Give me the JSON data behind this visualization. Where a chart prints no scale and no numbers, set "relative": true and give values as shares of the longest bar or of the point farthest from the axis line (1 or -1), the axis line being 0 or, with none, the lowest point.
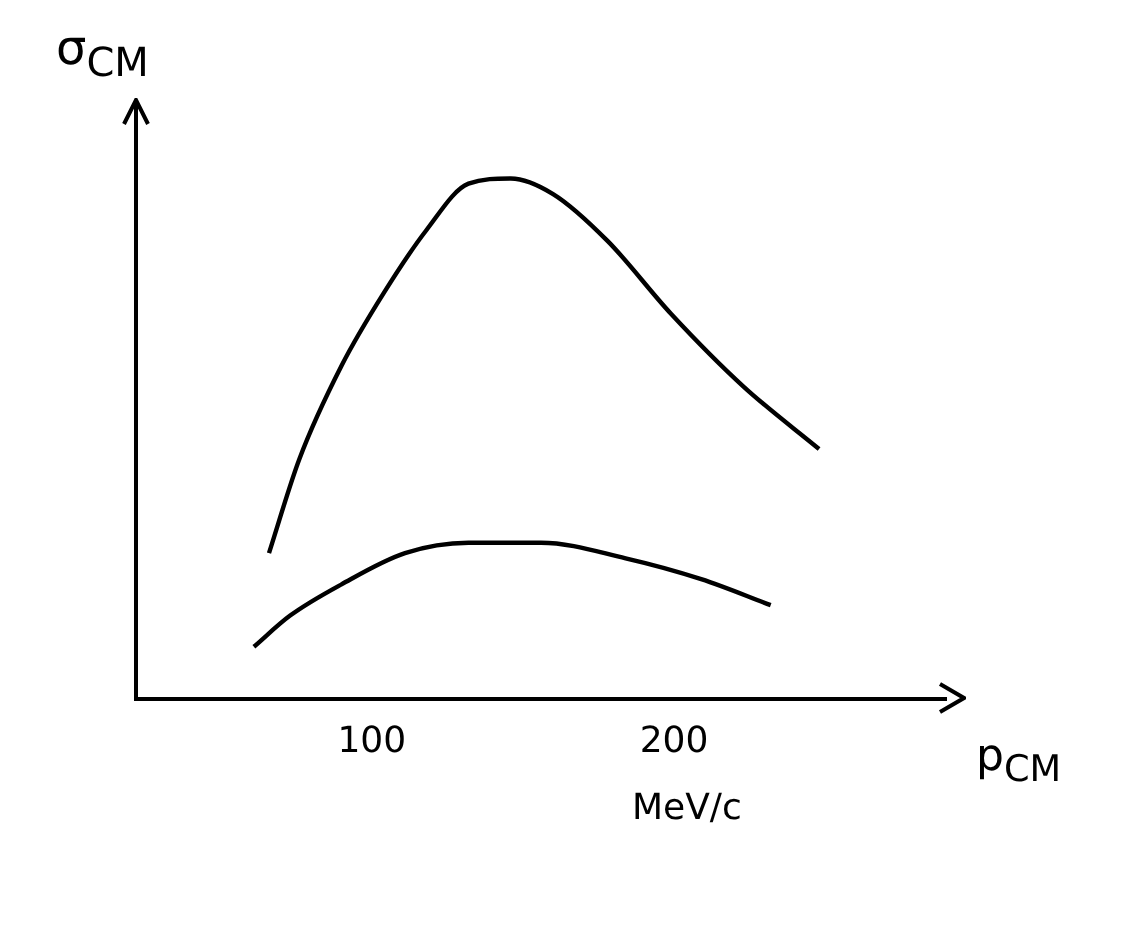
{
  "chart_data": {
    "type": "line",
    "ylabel": "σ$_{CM}$",
    "xlabel": "p$_{CM}$",
    "annotations": [
      "MeV/c"
    ],
    "relative": true,
    "xlim": [
      22,
      290
    ],
    "xticks": [
      100,
      200
    ],
    "grid": false,
    "legend": false,
    "marker": "none",
    "line_style": "solid",
    "series": [
      {
        "color": "#000000",
        "x": [
          66,
          76,
          90,
          104,
          118,
          132,
          146,
          160,
          178,
          199,
          223,
          248
        ],
        "values": [
          0.28,
          0.46,
          0.64,
          0.78,
          0.9,
          0.99,
          1,
          0.97,
          0.88,
          0.74,
          0.6,
          0.48
        ]
      },
      {
        "color": "#000000",
        "x": [
          61,
          73,
          90,
          111,
          132,
          156,
          184,
          209,
          232
        ],
        "values": [
          0.1,
          0.16,
          0.22,
          0.28,
          0.3,
          0.3,
          0.27,
          0.23,
          0.18
        ]
      }
    ]
  }
}
